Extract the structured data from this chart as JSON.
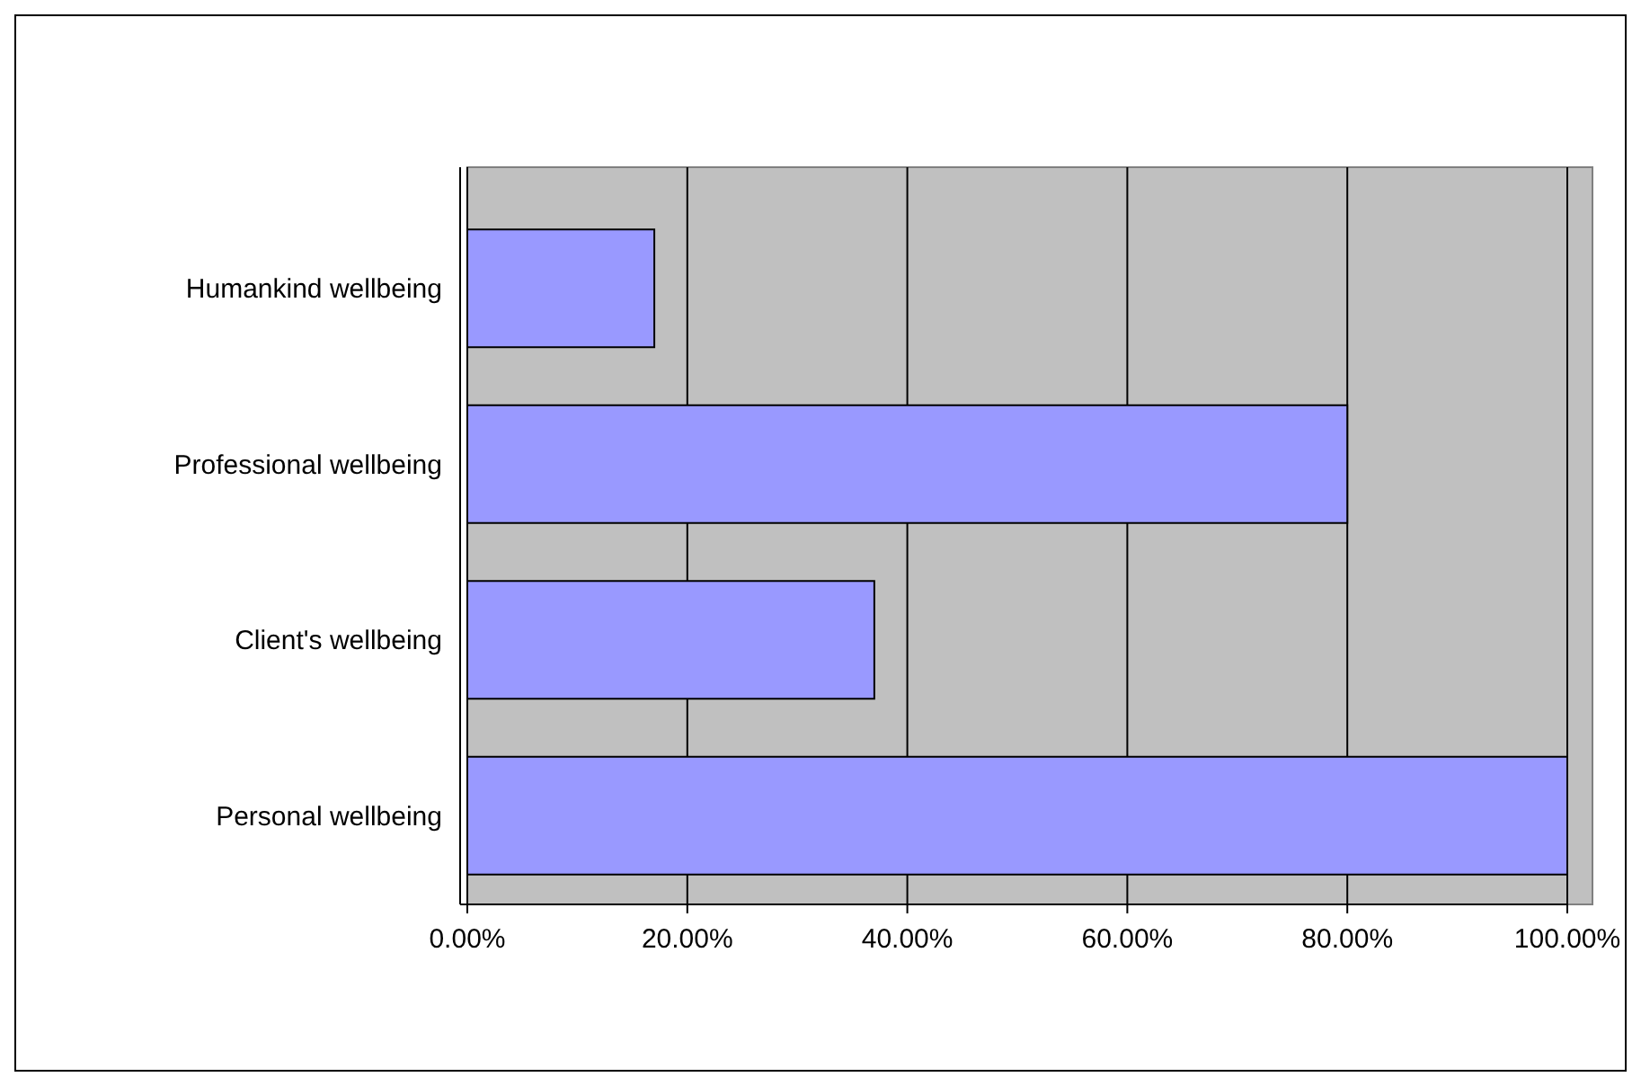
{
  "chart_data": {
    "type": "bar",
    "orientation": "horizontal",
    "categories": [
      "Humankind wellbeing",
      "Professional wellbeing",
      "Client's wellbeing",
      "Personal wellbeing"
    ],
    "values": [
      17,
      80,
      37,
      100
    ],
    "color": "#9999ff",
    "xlim": [
      0,
      100
    ],
    "xticks": [
      {
        "value": 0,
        "label": "0.00%"
      },
      {
        "value": 20,
        "label": "20.00%"
      },
      {
        "value": 40,
        "label": "40.00%"
      },
      {
        "value": 60,
        "label": "60.00%"
      },
      {
        "value": 80,
        "label": "80.00%"
      },
      {
        "value": 100,
        "label": "100.00%"
      }
    ],
    "grid": "x"
  }
}
